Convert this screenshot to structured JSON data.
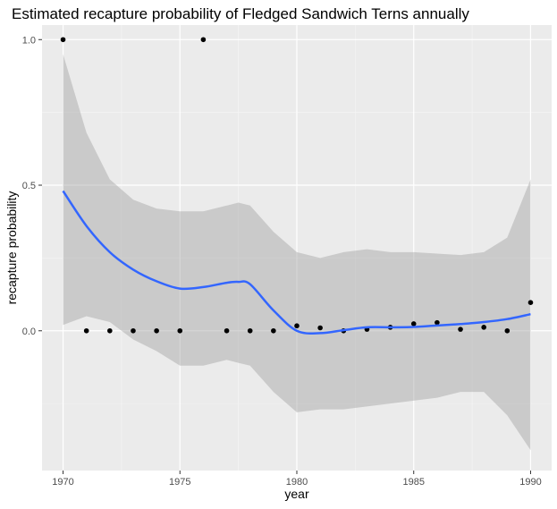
{
  "chart_data": {
    "type": "scatter",
    "title": "Estimated recapture probability of Fledged Sandwich Terns annually",
    "xlabel": "year",
    "ylabel": "recapture probability",
    "xlim": [
      1969.1,
      1990.9
    ],
    "ylim": [
      -0.48,
      1.05
    ],
    "x_ticks": [
      1970,
      1975,
      1980,
      1985,
      1990
    ],
    "x_tick_labels": [
      "1970",
      "1975",
      "1980",
      "1985",
      "1990"
    ],
    "y_ticks": [
      0.0,
      0.5,
      1.0
    ],
    "y_tick_labels": [
      "0.0",
      "0.5",
      "1.0"
    ],
    "grid": true,
    "points": {
      "name": "estimates",
      "x": [
        1970,
        1971,
        1972,
        1973,
        1974,
        1975,
        1976,
        1977,
        1978,
        1979,
        1980,
        1981,
        1982,
        1983,
        1984,
        1985,
        1986,
        1987,
        1988,
        1989,
        1990
      ],
      "y": [
        1.0,
        0.0,
        0.0,
        0.0,
        0.0,
        0.0,
        1.0,
        0.0,
        0.0,
        0.0,
        0.017,
        0.01,
        0.0,
        0.005,
        0.012,
        0.024,
        0.028,
        0.005,
        0.012,
        0.0,
        0.097
      ],
      "color": "#000000"
    },
    "smooth": {
      "name": "loess fit",
      "color": "#3366FF",
      "ribbon_color": "#999999",
      "x": [
        1970,
        1971,
        1972,
        1973,
        1974,
        1975,
        1976,
        1977,
        1977.5,
        1978,
        1979,
        1980,
        1981,
        1982,
        1983,
        1984,
        1985,
        1986,
        1987,
        1988,
        1989,
        1990
      ],
      "y": [
        0.48,
        0.36,
        0.27,
        0.21,
        0.17,
        0.145,
        0.15,
        0.165,
        0.168,
        0.16,
        0.07,
        0.0,
        -0.008,
        0.002,
        0.012,
        0.012,
        0.013,
        0.018,
        0.023,
        0.03,
        0.04,
        0.057
      ],
      "upper": [
        0.95,
        0.68,
        0.52,
        0.45,
        0.42,
        0.41,
        0.41,
        0.43,
        0.44,
        0.43,
        0.34,
        0.27,
        0.25,
        0.27,
        0.28,
        0.27,
        0.27,
        0.265,
        0.26,
        0.27,
        0.32,
        0.52
      ],
      "lower": [
        0.02,
        0.05,
        0.03,
        -0.03,
        -0.07,
        -0.12,
        -0.12,
        -0.1,
        -0.11,
        -0.12,
        -0.21,
        -0.28,
        -0.27,
        -0.27,
        -0.26,
        -0.25,
        -0.24,
        -0.23,
        -0.21,
        -0.21,
        -0.29,
        -0.41
      ]
    }
  }
}
